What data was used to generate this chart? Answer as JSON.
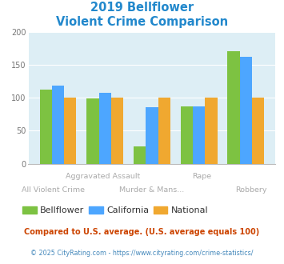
{
  "title_line1": "2019 Bellflower",
  "title_line2": "Violent Crime Comparison",
  "categories": [
    "All Violent Crime",
    "Aggravated Assault",
    "Murder & Mans...",
    "Rape",
    "Robbery"
  ],
  "bellflower": [
    112,
    99,
    26,
    87,
    170
  ],
  "california": [
    118,
    107,
    86,
    87,
    162
  ],
  "national": [
    100,
    100,
    100,
    100,
    100
  ],
  "colors": {
    "bellflower": "#7dc242",
    "california": "#4da6ff",
    "national": "#f0a830"
  },
  "ylim": [
    0,
    200
  ],
  "yticks": [
    0,
    50,
    100,
    150,
    200
  ],
  "plot_bg": "#ddeef5",
  "title_color": "#2288cc",
  "footer_color": "#cc4400",
  "copyright_color": "#4488bb",
  "label_color": "#aaaaaa",
  "footer_text": "Compared to U.S. average. (U.S. average equals 100)",
  "copyright_text": "© 2025 CityRating.com - https://www.cityrating.com/crime-statistics/",
  "legend_labels": [
    "Bellflower",
    "California",
    "National"
  ],
  "bottom_labels": [
    [
      0,
      "All Violent Crime"
    ],
    [
      2,
      "Murder & Mans..."
    ],
    [
      4,
      "Robbery"
    ]
  ],
  "top_labels": [
    [
      1,
      "Aggravated Assault"
    ],
    [
      3,
      "Rape"
    ]
  ]
}
